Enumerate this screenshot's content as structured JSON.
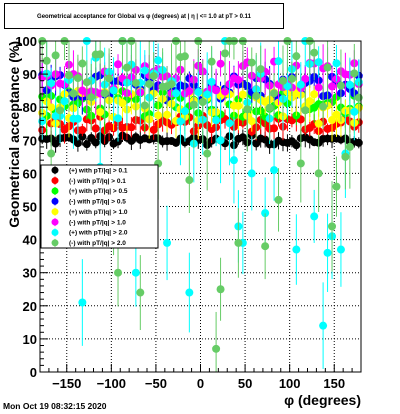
{
  "chart_data": {
    "type": "scatter",
    "title": "Geometrical acceptance for Global vs φ (degrees) at | η | <= 1.0 at pT > 0.11",
    "xlabel": "φ (degrees)",
    "ylabel": "Geometrical acceptance (%)",
    "xlim": [
      -180,
      180
    ],
    "ylim": [
      0,
      100
    ],
    "x_ticks": [
      -150,
      -100,
      -50,
      0,
      50,
      100,
      150
    ],
    "y_ticks": [
      0,
      10,
      20,
      30,
      40,
      50,
      60,
      70,
      80,
      90,
      100
    ],
    "grid": true,
    "legend_position": "left-middle",
    "bins": 72,
    "series": [
      {
        "name": "(+) with pT/|q| > 0.1",
        "color": "#000000",
        "mean": 70,
        "spread": 1.5,
        "error": 2,
        "lows": []
      },
      {
        "name": "(-) with pT/|q| > 0.1",
        "color": "#ff0000",
        "mean": 75,
        "spread": 2.5,
        "error": 3,
        "lows": []
      },
      {
        "name": "(+) with pT/|q| > 0.5",
        "color": "#00ff00",
        "mean": 81,
        "spread": 4,
        "error": 4,
        "lows": []
      },
      {
        "name": "(-) with pT/|q| > 0.5",
        "color": "#0000ff",
        "mean": 86,
        "spread": 4,
        "error": 4,
        "lows": []
      },
      {
        "name": "(+) with pT/|q| > 1.0",
        "color": "#ffff00",
        "mean": 80,
        "spread": 5,
        "error": 5,
        "lows": []
      },
      {
        "name": "(-) with pT/|q| > 1.0",
        "color": "#ff00ff",
        "mean": 89,
        "spread": 5,
        "error": 5,
        "lows": []
      },
      {
        "name": "(+) with pT/|q| > 2.0",
        "color": "#00ffff",
        "mean": 85,
        "spread": 10,
        "error": 9,
        "lows": [
          [
            -135,
            21
          ],
          [
            -112,
            62
          ],
          [
            -75,
            30
          ],
          [
            -40,
            39
          ],
          [
            -12,
            24
          ],
          [
            -10,
            69
          ],
          [
            20,
            70
          ],
          [
            35,
            64
          ],
          [
            40,
            44
          ],
          [
            45,
            39
          ],
          [
            55,
            60
          ],
          [
            72,
            48
          ],
          [
            80,
            61
          ],
          [
            105,
            42
          ],
          [
            108,
            37
          ],
          [
            128,
            47
          ],
          [
            135,
            14
          ],
          [
            140,
            36
          ],
          [
            145,
            41
          ],
          [
            155,
            37
          ],
          [
            162,
            66
          ]
        ]
      },
      {
        "name": "(-) with pT/|q| > 2.0",
        "color": "#66cc66",
        "mean": 88,
        "spread": 9,
        "error": 9,
        "lows": [
          [
            -170,
            66
          ],
          [
            -100,
            48
          ],
          [
            -95,
            30
          ],
          [
            -70,
            24
          ],
          [
            -48,
            63
          ],
          [
            -15,
            12
          ],
          [
            -15,
            58
          ],
          [
            5,
            66
          ],
          [
            15,
            7
          ],
          [
            20,
            25
          ],
          [
            42,
            39
          ],
          [
            70,
            13
          ],
          [
            72,
            38
          ],
          [
            85,
            52
          ],
          [
            110,
            63
          ],
          [
            130,
            25
          ],
          [
            132,
            60
          ],
          [
            148,
            44
          ],
          [
            150,
            56
          ],
          [
            160,
            65
          ],
          [
            165,
            50
          ],
          [
            168,
            68
          ]
        ]
      }
    ]
  },
  "footer": {
    "date_text": "Mon Oct 19 08:32:15 2020"
  }
}
